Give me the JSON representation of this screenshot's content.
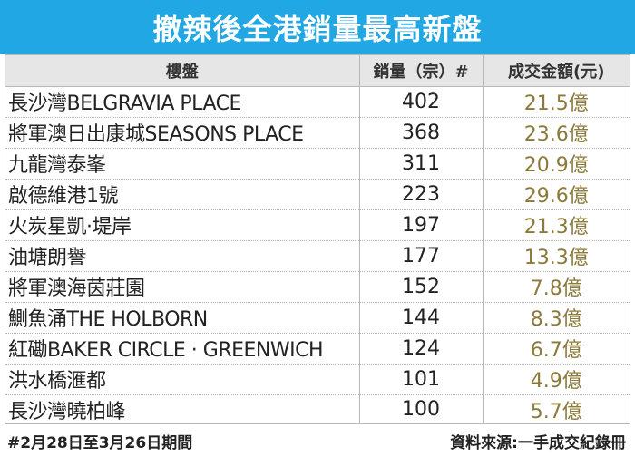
{
  "title": "撤辣後全港銷量最高新盤",
  "table": {
    "headers": {
      "name": "樓盤",
      "units": "銷量（宗）#",
      "amount": "成交金額(元)"
    },
    "rows": [
      {
        "name": "長沙灣BELGRAVIA PLACE",
        "units": "402",
        "amount": "21.5億"
      },
      {
        "name": "將軍澳日出康城SEASONS PLACE",
        "units": "368",
        "amount": "23.6億"
      },
      {
        "name": "九龍灣泰峯",
        "units": "311",
        "amount": "20.9億"
      },
      {
        "name": "啟德維港1號",
        "units": "223",
        "amount": "29.6億"
      },
      {
        "name": "火炭星凱·堤岸",
        "units": "197",
        "amount": "21.3億"
      },
      {
        "name": "油塘朗譽",
        "units": "177",
        "amount": "13.3億"
      },
      {
        "name": "將軍澳海茵莊園",
        "units": "152",
        "amount": "7.8億"
      },
      {
        "name": "鰂魚涌THE HOLBORN",
        "units": "144",
        "amount": "8.3億"
      },
      {
        "name": "紅磡BAKER CIRCLE · GREENWICH",
        "units": "124",
        "amount": "6.7億"
      },
      {
        "name": "洪水橋滙都",
        "units": "101",
        "amount": "4.9億"
      },
      {
        "name": "長沙灣曉柏峰",
        "units": "100",
        "amount": "5.7億"
      }
    ]
  },
  "footer": {
    "note": "#2月28日至3月26日期間",
    "source": "資料來源:一手成交紀錄冊"
  },
  "colors": {
    "title_bar": "#21a7e3",
    "header_row": "#e6e6e6",
    "amount_text": "#8b7a3a"
  }
}
